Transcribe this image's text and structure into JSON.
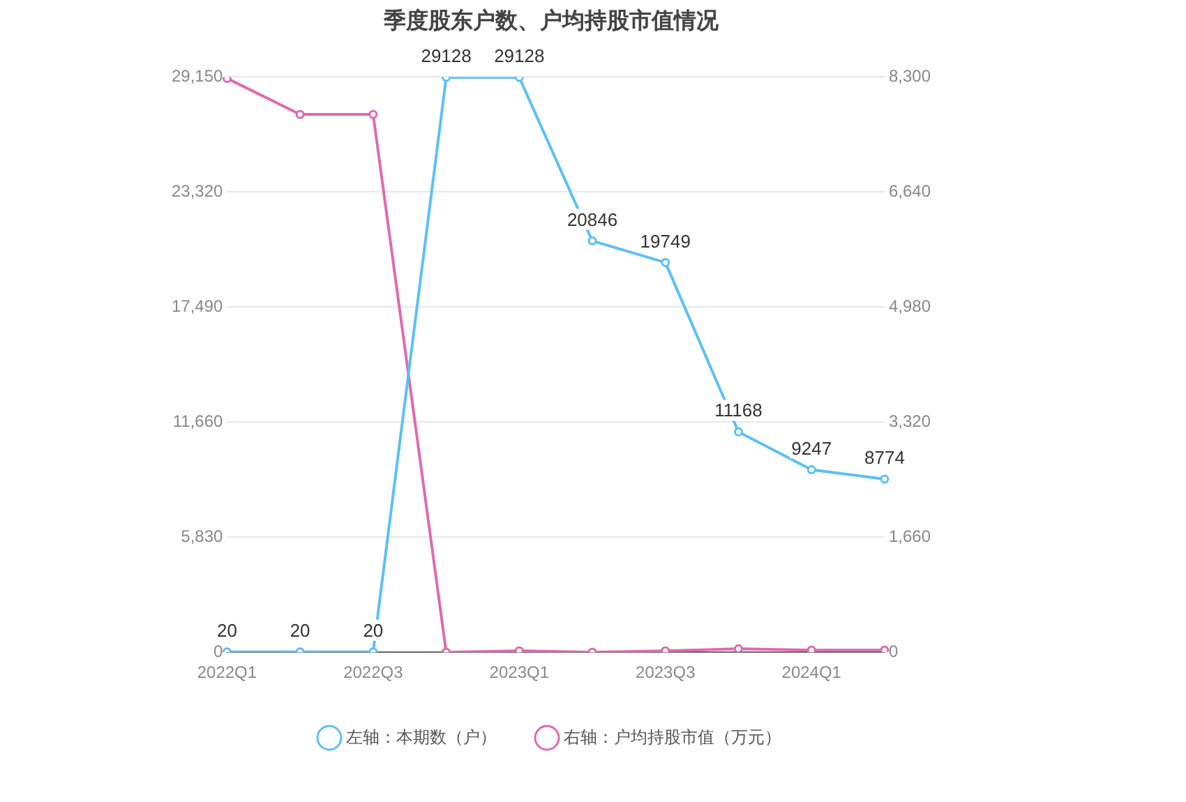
{
  "chart_data": {
    "type": "line",
    "title": "季度股东户数、户均持股市值情况",
    "categories": [
      "2022Q1",
      null,
      "2022Q3",
      null,
      "2023Q1",
      null,
      "2023Q3",
      null,
      "2024Q1",
      null
    ],
    "series": [
      {
        "name": "左轴：本期数（户）",
        "color": "#5bc0f8",
        "values": [
          20,
          20,
          20,
          29128,
          29128,
          20846,
          19749,
          11168,
          9247,
          8774
        ],
        "value_labels": [
          "20",
          "20",
          "20",
          "29128",
          "29128",
          "20846",
          "19749",
          "11168",
          "9247",
          "8774"
        ]
      },
      {
        "name": "右轴：户均持股市值（万元）",
        "color": "#e06aaf",
        "axis": "y2",
        "values": [
          8280,
          7760,
          7760,
          0,
          20,
          0,
          20,
          50,
          30,
          30
        ]
      }
    ],
    "ylim": [
      0,
      29150
    ],
    "yticks": [
      0,
      {
        "value": 5830,
        "label": "5,830"
      },
      {
        "value": 11660,
        "label": "11,660"
      },
      {
        "value": 17490,
        "label": "17,490"
      },
      {
        "value": 23320,
        "label": "23,320"
      },
      {
        "value": 29150,
        "label": "29,150"
      }
    ],
    "y2lim": [
      0,
      8300
    ],
    "y2ticks": [
      0,
      {
        "value": 1660,
        "label": "1,660"
      },
      {
        "value": 3320,
        "label": "3,320"
      },
      {
        "value": 4980,
        "label": "4,980"
      },
      {
        "value": 6640,
        "label": "6,640"
      },
      {
        "value": 8300,
        "label": "8,300"
      }
    ],
    "grid": "y",
    "legend": "bottom",
    "marker": "circle",
    "line_style": "solid"
  }
}
